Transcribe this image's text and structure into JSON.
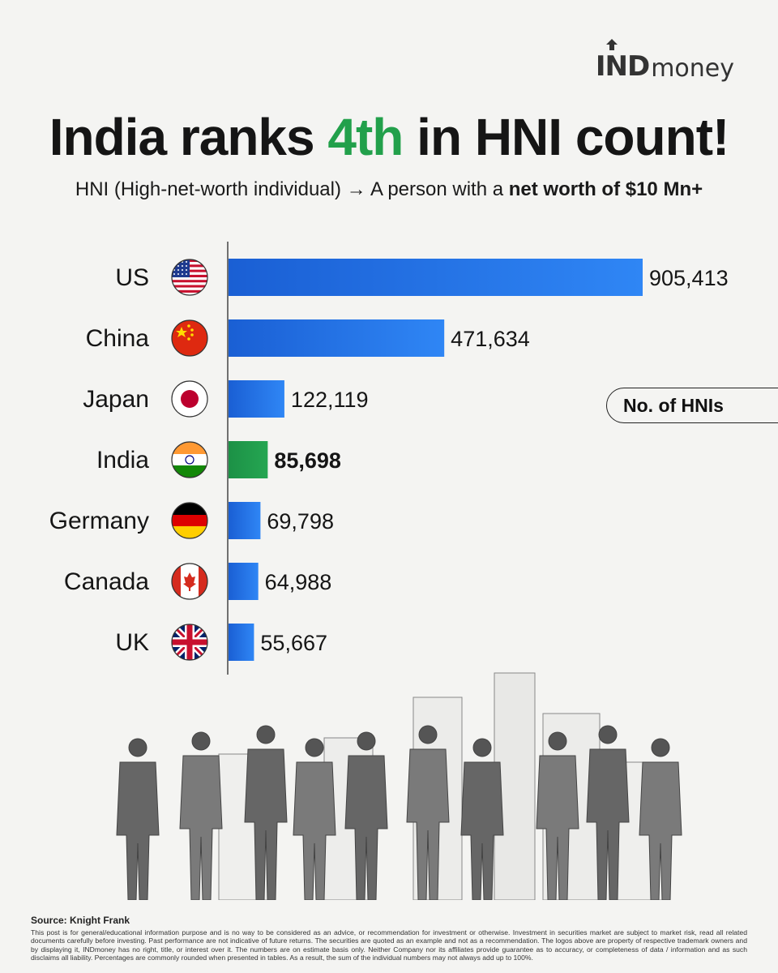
{
  "brand": {
    "logo_ind": "IND",
    "logo_money": "money"
  },
  "title": {
    "prefix": "India ranks ",
    "accent": "4th",
    "suffix": " in HNI count!"
  },
  "subtitle": {
    "part1": "HNI (High-net-worth individual) → A person with a ",
    "bold1": "net worth of",
    "space": " ",
    "bold2": "$10 Mn+"
  },
  "legend_label": "No. of HNIs",
  "chart_data": {
    "type": "bar",
    "orientation": "horizontal",
    "categories": [
      "US",
      "China",
      "Japan",
      "India",
      "Germany",
      "Canada",
      "UK"
    ],
    "values": [
      905413,
      471634,
      122119,
      85698,
      69798,
      64988,
      55667
    ],
    "value_labels": [
      "905,413",
      "471,634",
      "122,119",
      "85,698",
      "69,798",
      "64,988",
      "55,667"
    ],
    "highlight": "India",
    "colors": {
      "default": "#1f6fe0",
      "highlight": "#1e9a4b"
    },
    "legend": "No. of HNIs",
    "legend_position": "right"
  },
  "flags": [
    "us-flag-icon",
    "china-flag-icon",
    "japan-flag-icon",
    "india-flag-icon",
    "germany-flag-icon",
    "canada-flag-icon",
    "uk-flag-icon"
  ],
  "source": "Source: Knight Frank",
  "disclaimer": "This post is for general/educational information purpose and is no way to be considered as an advice, or recommendation for investment or otherwise. Investment in securities market are subject to market risk, read all related documents carefully before investing. Past performance are not indicative of future returns. The securities are quoted as an example and not as a recommendation. The logos above are property of respective trademark owners and by displaying it, INDmoney has no right, title, or interest over it. The numbers are on estimate basis only. Neither Company nor its affiliates provide guarantee as to accuracy, or completeness of data / information and as such disclaims all liability. Percentages are commonly rounded when presented in tables. As a result, the sum of the individual numbers may not always add up to 100%."
}
